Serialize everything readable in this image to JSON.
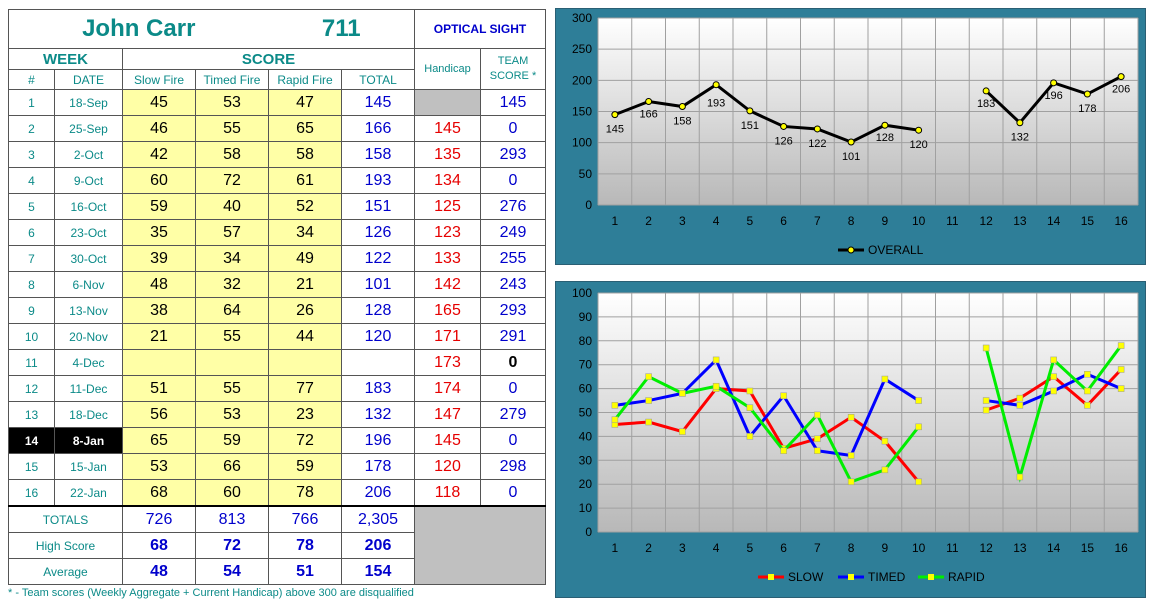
{
  "header": {
    "name": "John Carr",
    "id": "711",
    "team": "OPTICAL SIGHT"
  },
  "columns": {
    "week": "WEEK",
    "score": "SCORE",
    "handicap": "Handicap",
    "team_score": "TEAM SCORE *",
    "num": "#",
    "date": "DATE",
    "slow": "Slow Fire",
    "timed": "Timed Fire",
    "rapid": "Rapid Fire",
    "total": "TOTAL"
  },
  "rows": [
    {
      "num": "1",
      "date": "18-Sep",
      "slow": "45",
      "timed": "53",
      "rapid": "47",
      "total": "145",
      "handicap": "",
      "team": "145"
    },
    {
      "num": "2",
      "date": "25-Sep",
      "slow": "46",
      "timed": "55",
      "rapid": "65",
      "total": "166",
      "handicap": "145",
      "team": "0"
    },
    {
      "num": "3",
      "date": "2-Oct",
      "slow": "42",
      "timed": "58",
      "rapid": "58",
      "total": "158",
      "handicap": "135",
      "team": "293"
    },
    {
      "num": "4",
      "date": "9-Oct",
      "slow": "60",
      "timed": "72",
      "rapid": "61",
      "total": "193",
      "handicap": "134",
      "team": "0"
    },
    {
      "num": "5",
      "date": "16-Oct",
      "slow": "59",
      "timed": "40",
      "rapid": "52",
      "total": "151",
      "handicap": "125",
      "team": "276"
    },
    {
      "num": "6",
      "date": "23-Oct",
      "slow": "35",
      "timed": "57",
      "rapid": "34",
      "total": "126",
      "handicap": "123",
      "team": "249"
    },
    {
      "num": "7",
      "date": "30-Oct",
      "slow": "39",
      "timed": "34",
      "rapid": "49",
      "total": "122",
      "handicap": "133",
      "team": "255"
    },
    {
      "num": "8",
      "date": "6-Nov",
      "slow": "48",
      "timed": "32",
      "rapid": "21",
      "total": "101",
      "handicap": "142",
      "team": "243"
    },
    {
      "num": "9",
      "date": "13-Nov",
      "slow": "38",
      "timed": "64",
      "rapid": "26",
      "total": "128",
      "handicap": "165",
      "team": "293"
    },
    {
      "num": "10",
      "date": "20-Nov",
      "slow": "21",
      "timed": "55",
      "rapid": "44",
      "total": "120",
      "handicap": "171",
      "team": "291"
    },
    {
      "num": "11",
      "date": "4-Dec",
      "slow": "",
      "timed": "",
      "rapid": "",
      "total": "",
      "handicap": "173",
      "team": "0"
    },
    {
      "num": "12",
      "date": "11-Dec",
      "slow": "51",
      "timed": "55",
      "rapid": "77",
      "total": "183",
      "handicap": "174",
      "team": "0"
    },
    {
      "num": "13",
      "date": "18-Dec",
      "slow": "56",
      "timed": "53",
      "rapid": "23",
      "total": "132",
      "handicap": "147",
      "team": "279"
    },
    {
      "num": "14",
      "date": "8-Jan",
      "slow": "65",
      "timed": "59",
      "rapid": "72",
      "total": "196",
      "handicap": "145",
      "team": "0"
    },
    {
      "num": "15",
      "date": "15-Jan",
      "slow": "53",
      "timed": "66",
      "rapid": "59",
      "total": "178",
      "handicap": "120",
      "team": "298"
    },
    {
      "num": "16",
      "date": "22-Jan",
      "slow": "68",
      "timed": "60",
      "rapid": "78",
      "total": "206",
      "handicap": "118",
      "team": "0"
    }
  ],
  "summary": {
    "totals": {
      "label": "TOTALS",
      "slow": "726",
      "timed": "813",
      "rapid": "766",
      "total": "2,305"
    },
    "high": {
      "label": "High Score",
      "slow": "68",
      "timed": "72",
      "rapid": "78",
      "total": "206"
    },
    "average": {
      "label": "Average",
      "slow": "48",
      "timed": "54",
      "rapid": "51",
      "total": "154"
    }
  },
  "footnote": "* - Team scores (Weekly Aggregate + Current Handicap) above 300 are disqualified",
  "colors": {
    "accent": "#0b8a88",
    "highlight": "#ffffa6",
    "panel": "#2e7e98",
    "handicap": "#e60000"
  },
  "chart_data": [
    {
      "type": "line",
      "x": [
        1,
        2,
        3,
        4,
        5,
        6,
        7,
        8,
        9,
        10,
        11,
        12,
        13,
        14,
        15,
        16
      ],
      "ylim": [
        0,
        300
      ],
      "yticks": [
        0,
        50,
        100,
        150,
        200,
        250,
        300
      ],
      "grid": true,
      "legend": "bottom",
      "series": [
        {
          "name": "OVERALL",
          "color": "#000000",
          "values": [
            145,
            166,
            158,
            193,
            151,
            126,
            122,
            101,
            128,
            120,
            null,
            183,
            132,
            196,
            178,
            206
          ],
          "labels": [
            "145",
            "166",
            "158",
            "193",
            "151",
            "126",
            "122",
            "101",
            "128",
            "120",
            "",
            "183",
            "132",
            "196",
            "178",
            "206"
          ]
        }
      ]
    },
    {
      "type": "line",
      "x": [
        1,
        2,
        3,
        4,
        5,
        6,
        7,
        8,
        9,
        10,
        11,
        12,
        13,
        14,
        15,
        16
      ],
      "ylim": [
        0,
        100
      ],
      "yticks": [
        0,
        10,
        20,
        30,
        40,
        50,
        60,
        70,
        80,
        90,
        100
      ],
      "grid": true,
      "legend": "bottom",
      "series": [
        {
          "name": "SLOW",
          "color": "#ff0000",
          "values": [
            45,
            46,
            42,
            60,
            59,
            35,
            39,
            48,
            38,
            21,
            null,
            51,
            56,
            65,
            53,
            68
          ]
        },
        {
          "name": "TIMED",
          "color": "#0000ff",
          "values": [
            53,
            55,
            58,
            72,
            40,
            57,
            34,
            32,
            64,
            55,
            null,
            55,
            53,
            59,
            66,
            60
          ]
        },
        {
          "name": "RAPID",
          "color": "#00ee00",
          "values": [
            47,
            65,
            58,
            61,
            52,
            34,
            49,
            21,
            26,
            44,
            null,
            77,
            23,
            72,
            59,
            78
          ]
        }
      ]
    }
  ]
}
